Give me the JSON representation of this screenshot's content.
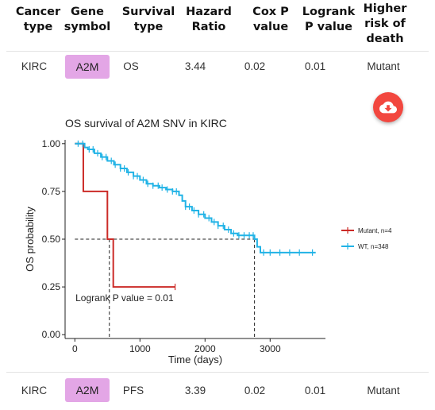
{
  "table": {
    "headers": [
      "Cancer\ntype",
      "Gene\nsymbol",
      "Survival\ntype",
      "Hazard\nRatio",
      "Cox P\nvalue",
      "Logrank\nP value",
      "Higher\nrisk of\ndeath"
    ],
    "rows": [
      {
        "cancer": "KIRC",
        "gene": "A2M",
        "survival": "OS",
        "hr": "3.44",
        "cox_p": "0.02",
        "logrank_p": "0.01",
        "risk": "Mutant"
      },
      {
        "cancer": "KIRC",
        "gene": "A2M",
        "survival": "PFS",
        "hr": "3.39",
        "cox_p": "0.02",
        "logrank_p": "0.01",
        "risk": "Mutant"
      }
    ]
  },
  "download_button": {
    "icon": "cloud-download-icon",
    "color": "#f2473f"
  },
  "chart_data": {
    "type": "line",
    "title": "OS survival of A2M SNV in KIRC",
    "xlabel": "Time (days)",
    "ylabel": "OS probability",
    "xlim": [
      -150,
      3850
    ],
    "ylim": [
      -0.02,
      1.02
    ],
    "xticks": [
      0,
      1000,
      2000,
      3000
    ],
    "yticks": [
      0.0,
      0.25,
      0.5,
      0.75,
      1.0
    ],
    "ytick_labels": [
      "0.00",
      "0.25",
      "0.50",
      "0.75",
      "1.00"
    ],
    "annotation": "Logrank P value = 0.01",
    "median_line": 0.5,
    "median_times": [
      530,
      2760
    ],
    "legend_position": "right",
    "series": [
      {
        "name": "Mutant, n=4",
        "color": "#cc2b27",
        "steps": [
          [
            0,
            1.0
          ],
          [
            130,
            1.0
          ],
          [
            130,
            0.75
          ],
          [
            500,
            0.75
          ],
          [
            500,
            0.5
          ],
          [
            590,
            0.5
          ],
          [
            590,
            0.25
          ],
          [
            1540,
            0.25
          ]
        ],
        "censor_times": [
          1540
        ]
      },
      {
        "name": "WT, n=348",
        "color": "#21b3e6",
        "steps": [
          [
            0,
            1.0
          ],
          [
            100,
            1.0
          ],
          [
            150,
            0.98
          ],
          [
            200,
            0.97
          ],
          [
            300,
            0.95
          ],
          [
            400,
            0.93
          ],
          [
            500,
            0.91
          ],
          [
            600,
            0.89
          ],
          [
            700,
            0.87
          ],
          [
            800,
            0.85
          ],
          [
            900,
            0.83
          ],
          [
            1000,
            0.81
          ],
          [
            1100,
            0.79
          ],
          [
            1200,
            0.78
          ],
          [
            1300,
            0.77
          ],
          [
            1400,
            0.76
          ],
          [
            1500,
            0.75
          ],
          [
            1600,
            0.73
          ],
          [
            1650,
            0.7
          ],
          [
            1700,
            0.67
          ],
          [
            1800,
            0.65
          ],
          [
            1900,
            0.63
          ],
          [
            2000,
            0.61
          ],
          [
            2100,
            0.59
          ],
          [
            2200,
            0.57
          ],
          [
            2300,
            0.55
          ],
          [
            2400,
            0.53
          ],
          [
            2500,
            0.52
          ],
          [
            2600,
            0.52
          ],
          [
            2740,
            0.52
          ],
          [
            2760,
            0.5
          ],
          [
            2800,
            0.46
          ],
          [
            2850,
            0.43
          ],
          [
            3700,
            0.43
          ]
        ],
        "censor_times": [
          50,
          120,
          220,
          280,
          350,
          420,
          480,
          560,
          620,
          700,
          760,
          820,
          900,
          960,
          1050,
          1120,
          1200,
          1280,
          1340,
          1420,
          1500,
          1560,
          1700,
          1760,
          1830,
          1900,
          1980,
          2060,
          2140,
          2200,
          2280,
          2360,
          2440,
          2520,
          2600,
          2680,
          2740,
          2900,
          3000,
          3150,
          3300,
          3450,
          3650
        ]
      }
    ]
  }
}
